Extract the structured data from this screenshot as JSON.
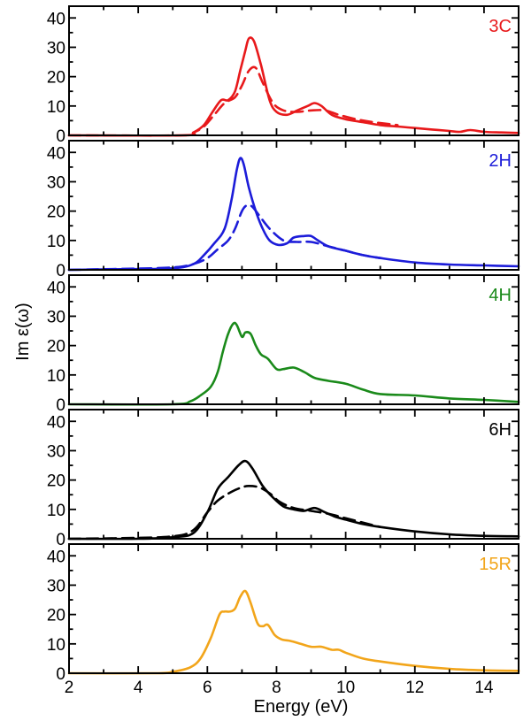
{
  "chart_data": {
    "type": "line",
    "xlabel": "Energy (eV)",
    "ylabel": "Im ε(ω)",
    "xlim": [
      2,
      15
    ],
    "ylim": [
      0,
      44
    ],
    "x_ticks": [
      2,
      4,
      6,
      8,
      10,
      12,
      14
    ],
    "y_ticks": [
      0,
      10,
      20,
      30,
      40
    ],
    "grid": false,
    "panels": [
      {
        "label": "3C",
        "color": "#e8191b",
        "series": [
          {
            "style": "solid",
            "x": [
              2,
              5.3,
              5.6,
              5.9,
              6.15,
              6.4,
              6.6,
              6.8,
              6.95,
              7.1,
              7.2,
              7.35,
              7.55,
              7.8,
              8.0,
              8.3,
              8.6,
              8.9,
              9.1,
              9.3,
              9.6,
              10.0,
              10.5,
              11.0,
              11.5,
              12.0,
              12.5,
              13.0,
              13.3,
              13.6,
              14.0,
              14.5,
              15.0
            ],
            "y": [
              0,
              0,
              1,
              3.5,
              8,
              12,
              12,
              15,
              22,
              29,
              33,
              32,
              24,
              12,
              8,
              7,
              8.5,
              10,
              11,
              10,
              7,
              5.5,
              4.5,
              3.5,
              3,
              2.5,
              2,
              1.5,
              1.2,
              1.8,
              1.2,
              1,
              0.8
            ]
          },
          {
            "style": "dashed",
            "x": [
              2,
              5.3,
              5.6,
              5.9,
              6.2,
              6.5,
              6.8,
              7.0,
              7.2,
              7.4,
              7.6,
              7.9,
              8.2,
              8.6,
              9.0,
              9.4,
              9.8,
              10.3,
              10.8,
              11.5
            ],
            "y": [
              0,
              0,
              1,
              3,
              7,
              11,
              13,
              17,
              22,
              23,
              18,
              11,
              8.5,
              8,
              8.5,
              8.5,
              7,
              5.5,
              4.5,
              3.5
            ]
          }
        ]
      },
      {
        "label": "2H",
        "color": "#1c1cd9",
        "series": [
          {
            "style": "solid",
            "x": [
              2,
              3.5,
              5.0,
              5.6,
              5.9,
              6.2,
              6.5,
              6.7,
              6.85,
              6.95,
              7.05,
              7.2,
              7.4,
              7.6,
              7.8,
              8.05,
              8.3,
              8.5,
              8.8,
              9.0,
              9.2,
              9.5,
              10.0,
              10.5,
              11.0,
              12.0,
              13.0,
              14.0,
              15.0
            ],
            "y": [
              0,
              0.2,
              0.5,
              2,
              5,
              9,
              14,
              24,
              34,
              38,
              36,
              28,
              20,
              14,
              10,
              8.5,
              9,
              11,
              11.5,
              11.5,
              10,
              8,
              6.5,
              5,
              4,
              2.5,
              1.8,
              1.5,
              1.2
            ]
          },
          {
            "style": "dashed",
            "x": [
              2,
              3.5,
              5.0,
              5.6,
              6.0,
              6.3,
              6.6,
              6.8,
              7.0,
              7.15,
              7.3,
              7.5,
              7.8,
              8.2,
              8.6,
              9.0,
              9.5,
              10.0,
              10.5,
              11.0
            ],
            "y": [
              0,
              0.3,
              0.8,
              2,
              4,
              7,
              10,
              14,
              20,
              22,
              21.5,
              18.5,
              14,
              10,
              9.5,
              9.5,
              8,
              6.5,
              5,
              4
            ]
          }
        ]
      },
      {
        "label": "4H",
        "color": "#1a8a1a",
        "series": [
          {
            "style": "solid",
            "x": [
              2,
              5.0,
              5.5,
              5.8,
              6.1,
              6.3,
              6.45,
              6.6,
              6.75,
              6.85,
              7.0,
              7.1,
              7.25,
              7.4,
              7.55,
              7.75,
              8.0,
              8.2,
              8.5,
              8.8,
              9.1,
              9.5,
              10.0,
              10.5,
              11.0,
              12.0,
              13.0,
              14.0,
              15.0
            ],
            "y": [
              0,
              0,
              1,
              3,
              6,
              11,
              18,
              24,
              27.5,
              27,
              23,
              24.5,
              24,
              20,
              17,
              15.5,
              12,
              12,
              12.5,
              11,
              9,
              8,
              7,
              5,
              3.5,
              3,
              2,
              1.5,
              0.8
            ]
          }
        ]
      },
      {
        "label": "6H",
        "color": "#000000",
        "series": [
          {
            "style": "solid",
            "x": [
              2,
              4.0,
              5.0,
              5.6,
              6.0,
              6.3,
              6.6,
              6.9,
              7.1,
              7.3,
              7.6,
              7.9,
              8.2,
              8.5,
              8.8,
              9.1,
              9.4,
              9.7,
              10.0,
              10.5,
              11.0,
              12.0,
              13.0,
              14.0,
              15.0
            ],
            "y": [
              0,
              0,
              0.5,
              2,
              9,
              17,
              21,
              25,
              26.5,
              24,
              18,
              14,
              11,
              10,
              9.5,
              10.5,
              9,
              7.5,
              6.5,
              5,
              4,
              2.5,
              1.5,
              1,
              0.8
            ]
          },
          {
            "style": "dashed",
            "x": [
              2,
              3.5,
              5.0,
              5.6,
              6.0,
              6.3,
              6.7,
              7.0,
              7.2,
              7.5,
              7.8,
              8.1,
              8.5,
              9.0,
              9.5,
              10.0,
              10.5,
              11.0
            ],
            "y": [
              0,
              0.2,
              0.8,
              3,
              9,
              13,
              16,
              17.5,
              18,
              17.5,
              15.5,
              12.5,
              10.5,
              9.5,
              8.5,
              7,
              5.5,
              4
            ]
          }
        ]
      },
      {
        "label": "15R",
        "color": "#f2a51a",
        "series": [
          {
            "style": "solid",
            "x": [
              2,
              4.5,
              5.0,
              5.5,
              5.8,
              6.1,
              6.35,
              6.5,
              6.65,
              6.8,
              6.95,
              7.1,
              7.25,
              7.45,
              7.6,
              7.75,
              7.95,
              8.15,
              8.4,
              8.7,
              9.0,
              9.3,
              9.6,
              9.8,
              10.0,
              10.5,
              11.0,
              12.0,
              13.0,
              14.0,
              15.0
            ],
            "y": [
              0,
              0,
              0.5,
              2,
              5,
              12,
              20,
              21,
              21,
              22,
              26,
              28,
              24,
              17,
              16,
              16.5,
              13,
              11.5,
              11,
              10,
              9,
              9,
              8,
              8,
              7,
              5,
              4,
              2.5,
              1.5,
              1,
              0.8
            ]
          }
        ]
      }
    ]
  }
}
